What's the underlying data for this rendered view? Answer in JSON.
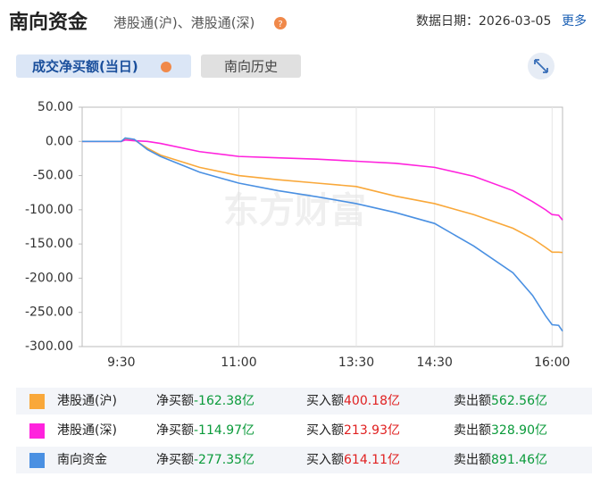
{
  "header": {
    "title": "南向资金",
    "subtitle": "港股通(沪)、港股通(深)",
    "date_label": "数据日期：",
    "date": "2026-03-05",
    "more": "更多"
  },
  "tabs": [
    "成交净买额(当日)",
    "南向历史"
  ],
  "chart_data": {
    "type": "line",
    "watermark": "东方财富",
    "x": [
      0,
      30,
      33,
      40,
      50,
      60,
      90,
      120,
      150,
      180,
      210,
      240,
      270,
      300,
      330,
      345,
      355,
      360,
      365,
      368
    ],
    "xlim": [
      0,
      368
    ],
    "xticks": [
      {
        "value": 30,
        "label": "9:30"
      },
      {
        "value": 120,
        "label": "11:00"
      },
      {
        "value": 210,
        "label": "13:30"
      },
      {
        "value": 270,
        "label": "14:30"
      },
      {
        "value": 360,
        "label": "16:00"
      }
    ],
    "ylim": [
      -300,
      50
    ],
    "yticks": [
      {
        "value": 50,
        "label": "50.00"
      },
      {
        "value": 0,
        "label": "0.00"
      },
      {
        "value": -50,
        "label": "-50.00"
      },
      {
        "value": -100,
        "label": "-100.00"
      },
      {
        "value": -150,
        "label": "-150.00"
      },
      {
        "value": -200,
        "label": "-200.00"
      },
      {
        "value": -250,
        "label": "-250.00"
      },
      {
        "value": -300,
        "label": "-300.00"
      }
    ],
    "grid": "x",
    "series": [
      {
        "name": "港股通(沪)",
        "color": "#f9a83a",
        "values": [
          0,
          0,
          3,
          2,
          -10,
          -20,
          -38,
          -50,
          -56,
          -61,
          -66,
          -80,
          -91,
          -107,
          -127,
          -142,
          -155,
          -162,
          -162,
          -162.38
        ]
      },
      {
        "name": "港股通(深)",
        "color": "#ff22dd",
        "values": [
          0,
          0,
          2,
          1,
          0,
          -3,
          -15,
          -22,
          -24,
          -26,
          -29,
          -32,
          -38,
          -51,
          -72,
          -88,
          -100,
          -107,
          -108,
          -114.97
        ]
      },
      {
        "name": "南向资金",
        "color": "#4a90e2",
        "values": [
          0,
          0,
          5,
          3,
          -12,
          -22,
          -45,
          -61,
          -72,
          -81,
          -91,
          -104,
          -120,
          -153,
          -192,
          -225,
          -255,
          -268,
          -269,
          -277.35
        ]
      }
    ],
    "summary": [
      {
        "net_label": "净买额",
        "net": "-162.38亿",
        "buy_label": "买入额",
        "buy": "400.18亿",
        "sell_label": "卖出额",
        "sell": "562.56亿"
      },
      {
        "net_label": "净买额",
        "net": "-114.97亿",
        "buy_label": "买入额",
        "buy": "213.93亿",
        "sell_label": "卖出额",
        "sell": "328.90亿"
      },
      {
        "net_label": "净买额",
        "net": "-277.35亿",
        "buy_label": "买入额",
        "buy": "614.11亿",
        "sell_label": "卖出额",
        "sell": "891.46亿"
      }
    ]
  }
}
